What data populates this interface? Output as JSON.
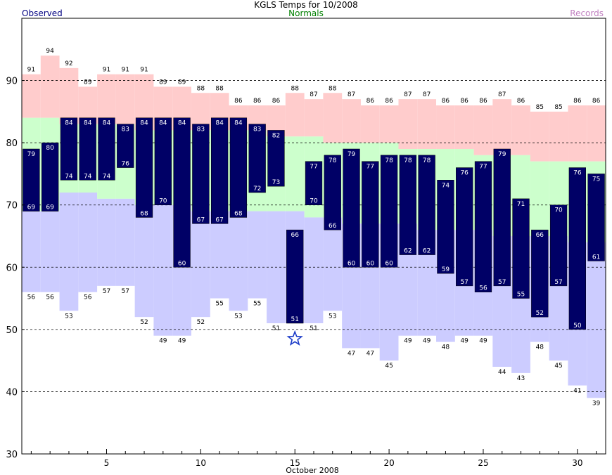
{
  "title": "KGLS Temps for 10/2008",
  "legend": {
    "observed": "Observed",
    "normals": "Normals",
    "records": "Records"
  },
  "colors": {
    "observed": "#000066",
    "normal": "#ccffcc",
    "record_high": "#ffcccc",
    "record_low": "#ccccff",
    "star": "#1a3ac8"
  },
  "chart_data": {
    "type": "bar",
    "title": "KGLS Temps for 10/2008",
    "xlabel": "October 2008",
    "ylabel": "",
    "ylim": [
      30,
      100
    ],
    "y_ticks": [
      30,
      40,
      50,
      60,
      70,
      80,
      90
    ],
    "x_ticks": [
      5,
      10,
      15,
      20,
      25,
      30
    ],
    "grid": true,
    "days": [
      1,
      2,
      3,
      4,
      5,
      6,
      7,
      8,
      9,
      10,
      11,
      12,
      13,
      14,
      15,
      16,
      17,
      18,
      19,
      20,
      21,
      22,
      23,
      24,
      25,
      26,
      27,
      28,
      29,
      30,
      31
    ],
    "record_high": [
      91,
      94,
      92,
      89,
      91,
      91,
      91,
      89,
      89,
      88,
      88,
      86,
      86,
      86,
      88,
      87,
      88,
      87,
      86,
      86,
      87,
      87,
      86,
      86,
      86,
      87,
      86,
      85,
      85,
      86,
      86
    ],
    "normal_high": [
      84,
      84,
      83,
      83,
      83,
      83,
      82,
      82,
      82,
      82,
      82,
      82,
      82,
      81,
      81,
      81,
      80,
      80,
      80,
      80,
      79,
      79,
      79,
      79,
      78,
      78,
      78,
      77,
      77,
      77,
      77
    ],
    "normal_low": [
      69,
      69,
      72,
      72,
      71,
      71,
      70,
      70,
      70,
      69,
      69,
      69,
      69,
      69,
      69,
      68,
      68,
      67,
      67,
      67,
      67,
      66,
      66,
      66,
      66,
      65,
      65,
      65,
      65,
      64,
      64
    ],
    "record_low": [
      56,
      56,
      53,
      56,
      57,
      57,
      52,
      49,
      49,
      52,
      55,
      53,
      55,
      51,
      null,
      51,
      53,
      47,
      47,
      45,
      49,
      49,
      48,
      49,
      49,
      44,
      43,
      48,
      45,
      41,
      39
    ],
    "observed_high": [
      79,
      80,
      84,
      84,
      84,
      83,
      84,
      84,
      84,
      83,
      84,
      84,
      83,
      82,
      66,
      77,
      78,
      79,
      77,
      78,
      78,
      78,
      74,
      76,
      77,
      79,
      71,
      66,
      70,
      76,
      75
    ],
    "observed_low": [
      69,
      69,
      74,
      74,
      74,
      76,
      68,
      70,
      60,
      67,
      67,
      68,
      72,
      73,
      51,
      70,
      66,
      60,
      60,
      60,
      62,
      62,
      59,
      57,
      56,
      57,
      55,
      52,
      57,
      50,
      61
    ],
    "record_low_marker": {
      "day": 15,
      "value": 48.5
    }
  }
}
